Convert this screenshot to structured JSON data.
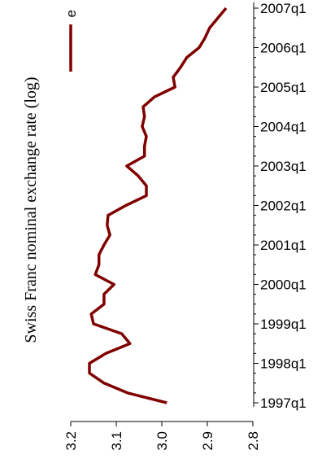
{
  "chart_data": {
    "type": "line",
    "y_label": "Swiss Franc nominal exchange rate (log)",
    "categories": [
      "1997q1",
      null,
      null,
      null,
      "1998q1",
      null,
      null,
      null,
      "1999q1",
      null,
      null,
      null,
      "2000q1",
      null,
      null,
      null,
      "2001q1",
      null,
      null,
      null,
      "2002q1",
      null,
      null,
      null,
      "2003q1",
      null,
      null,
      null,
      "2004q1",
      null,
      null,
      null,
      "2005q1",
      null,
      null,
      null,
      "2006q1",
      null,
      null,
      null,
      "2007q1"
    ],
    "series": [
      {
        "name": "e",
        "color": "#800000",
        "values": [
          2.989,
          3.075,
          3.127,
          3.159,
          3.159,
          3.123,
          3.07,
          3.088,
          3.15,
          3.155,
          3.127,
          3.127,
          3.105,
          3.146,
          3.138,
          3.138,
          3.127,
          3.114,
          3.12,
          3.118,
          3.079,
          3.034,
          3.034,
          3.052,
          3.077,
          3.038,
          3.038,
          3.034,
          3.043,
          3.038,
          3.041,
          3.016,
          2.971,
          2.975,
          2.959,
          2.945,
          2.918,
          2.905,
          2.895,
          2.877,
          2.859
        ]
      }
    ],
    "ylim": [
      3.2,
      2.8
    ],
    "yticks": [
      3.2,
      3.1,
      {
        "value": 3,
        "label": "3.0"
      },
      2.9,
      2.8
    ],
    "legend": "top-left"
  }
}
